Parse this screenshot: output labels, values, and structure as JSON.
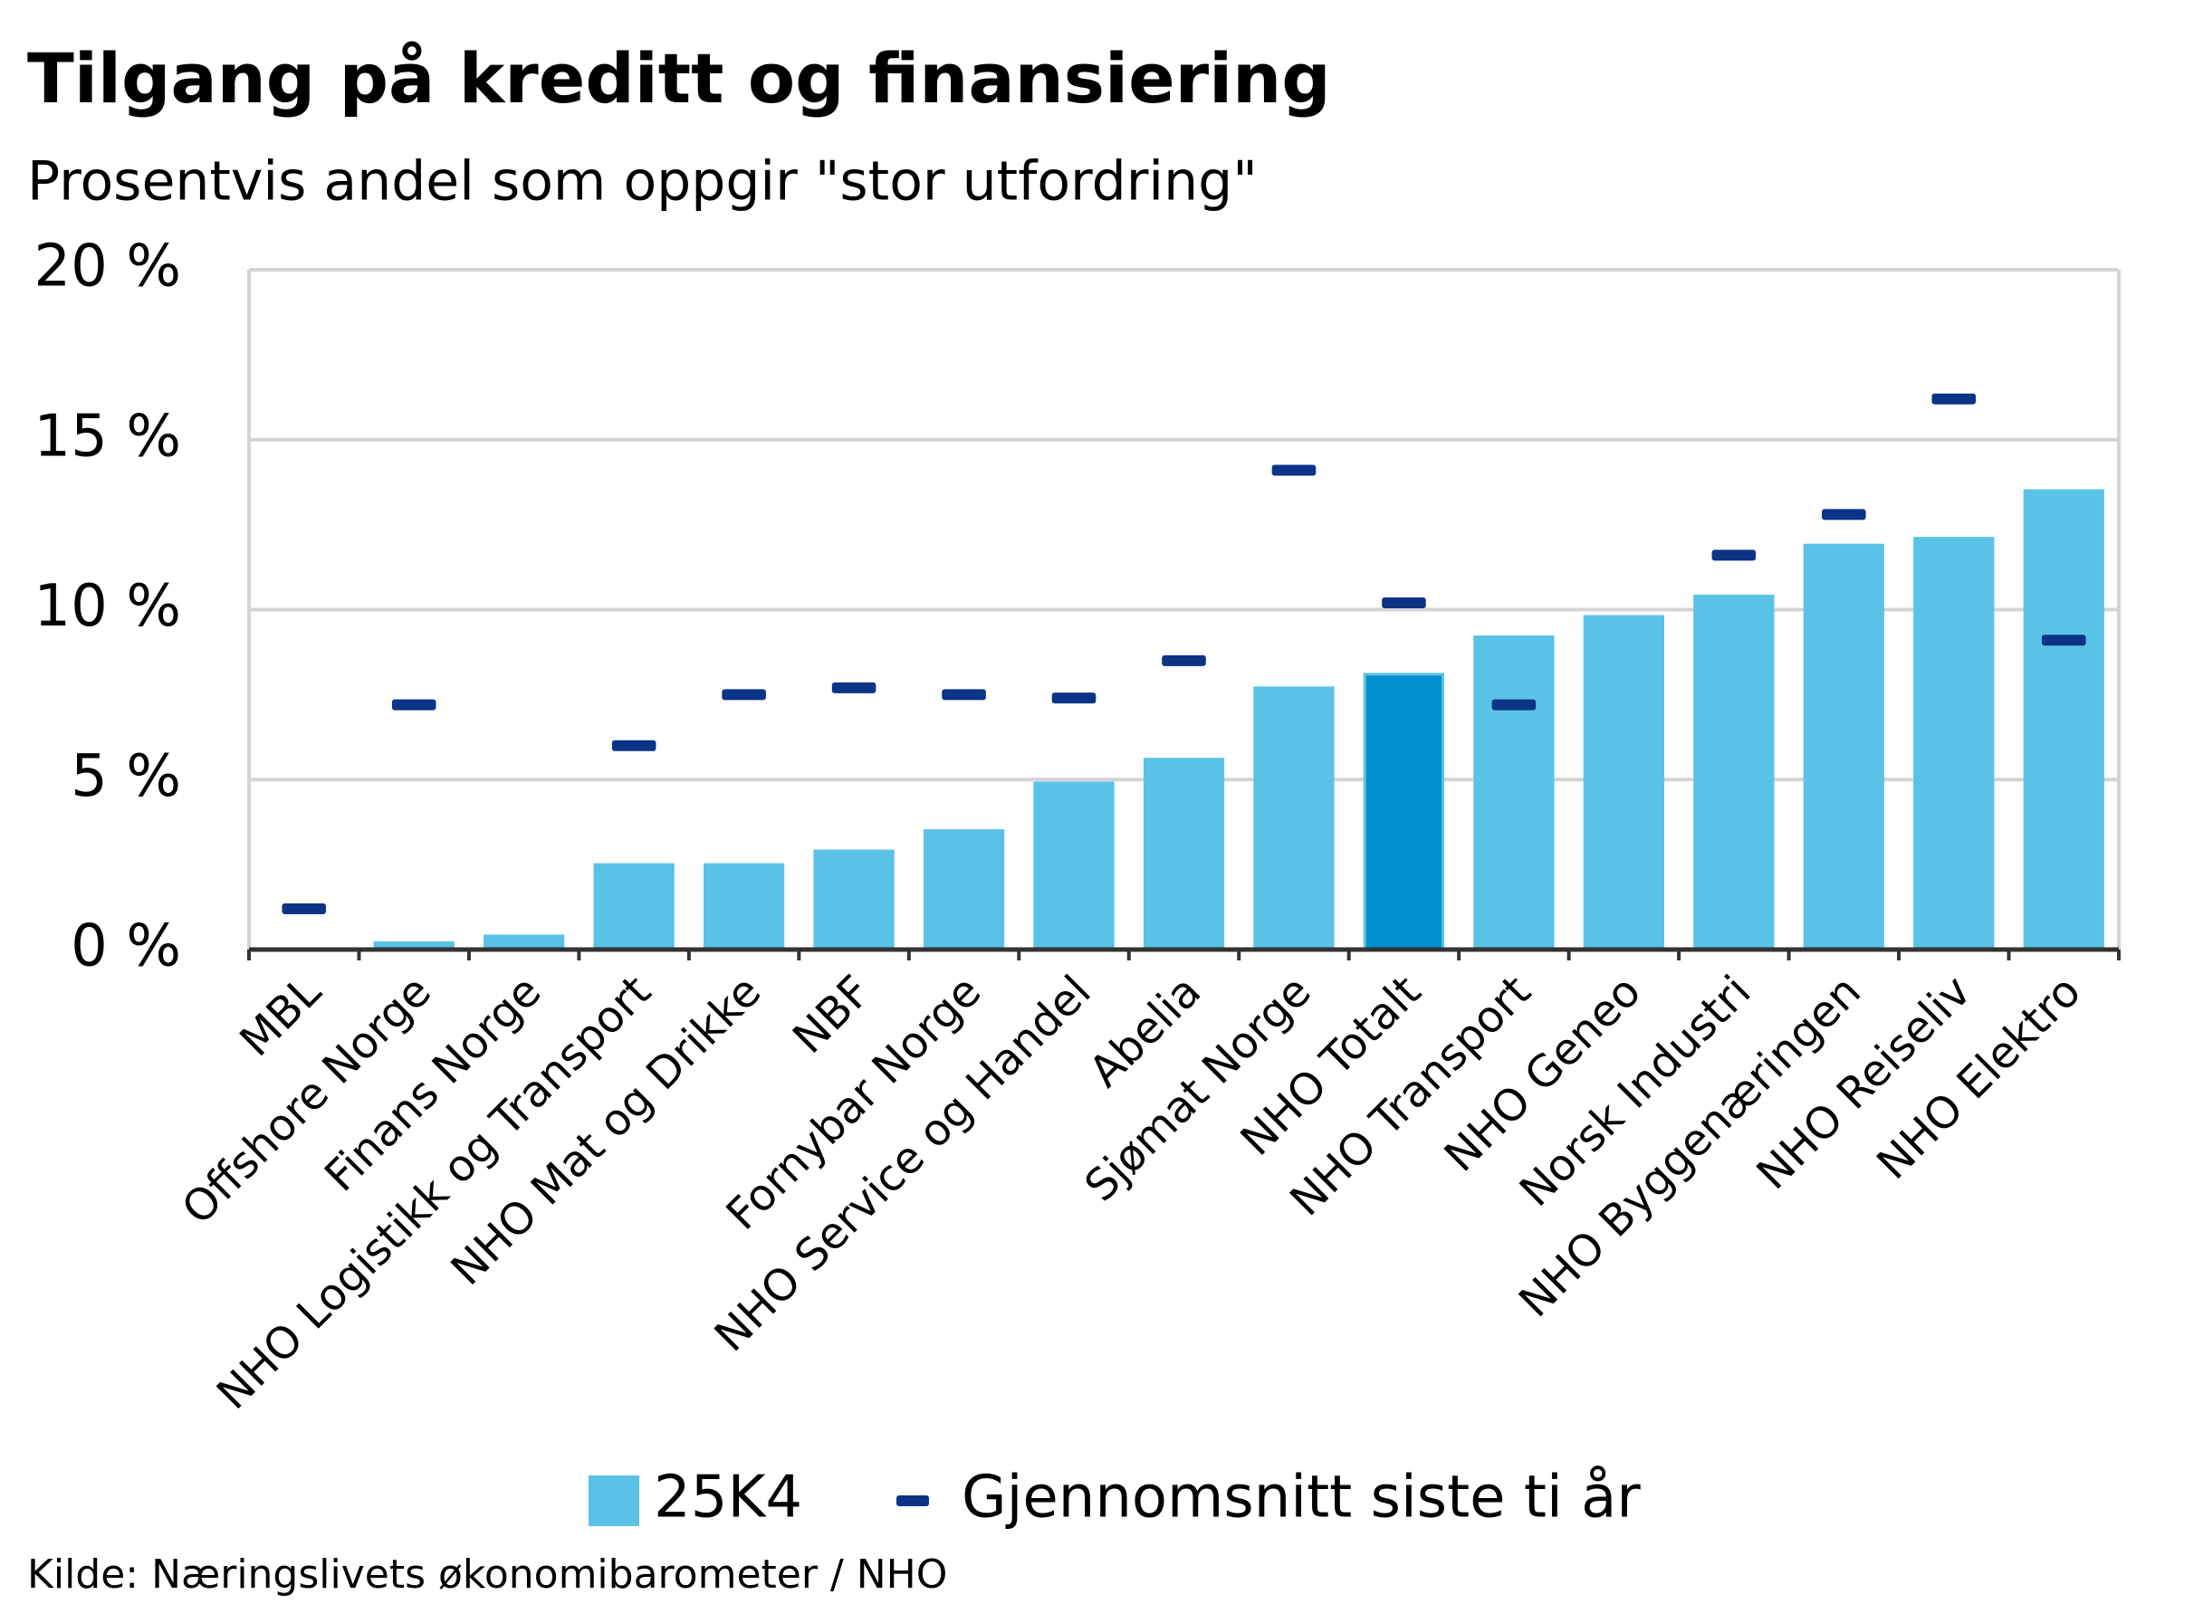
{
  "chart_data": {
    "type": "bar",
    "title": "Tilgang på kreditt og finansiering",
    "subtitle": "Prosentvis andel som oppgir \"stor utfordring\"",
    "source": "Kilde: Næringslivets økonomibarometer / NHO",
    "categories": [
      "MBL",
      "Offshore Norge",
      "Finans Norge",
      "NHO Logistikk og Transport",
      "NHO Mat og Drikke",
      "NBF",
      "Fornybar Norge",
      "NHO Service og Handel",
      "Abelia",
      "Sjømat Norge",
      "NHO Totalt",
      "NHO Transport",
      "NHO Geneo",
      "Norsk Industri",
      "NHO Byggenæringen",
      "NHO Reiseliv",
      "NHO Elektro"
    ],
    "series": [
      {
        "name": "25K4",
        "type": "bar",
        "color": "#5bc2e7",
        "colors": [
          "#5bc2e7",
          "#5bc2e7",
          "#5bc2e7",
          "#5bc2e7",
          "#5bc2e7",
          "#5bc2e7",
          "#5bc2e7",
          "#5bc2e7",
          "#5bc2e7",
          "#5bc2e7",
          "#008fcf",
          "#5bc2e7",
          "#5bc2e7",
          "#5bc2e7",
          "#5bc2e7",
          "#5bc2e7",
          "#5bc2e7"
        ],
        "values": [
          0,
          0.2,
          0.4,
          2.5,
          2.5,
          2.9,
          3.5,
          4.9,
          5.6,
          7.7,
          8.1,
          9.2,
          9.8,
          10.4,
          11.9,
          12.1,
          13.5
        ]
      },
      {
        "name": "Gjennomsnitt siste ti år",
        "type": "marker",
        "color": "#0b3487",
        "values": [
          1.2,
          7.2,
          null,
          6.0,
          7.5,
          7.7,
          7.5,
          7.4,
          8.5,
          14.1,
          10.2,
          7.2,
          null,
          11.6,
          12.8,
          16.2,
          9.1
        ]
      }
    ],
    "ylim": [
      0,
      20
    ],
    "yticks": [
      {
        "value": 0,
        "label": "0 %"
      },
      {
        "value": 5,
        "label": "5 %"
      },
      {
        "value": 10,
        "label": "10 %"
      },
      {
        "value": 15,
        "label": "15 %"
      },
      {
        "value": 20,
        "label": "20 %"
      }
    ],
    "grid": true,
    "legend": "bottom"
  }
}
